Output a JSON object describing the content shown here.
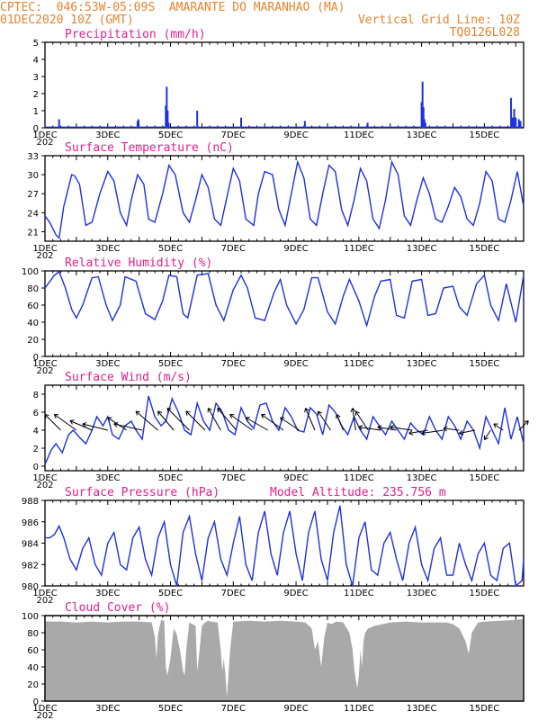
{
  "header": {
    "line1": "CPTEC:  046:53W-05:09S  AMARANTE DO MARANHAO (MA)",
    "date": "01DEC2020 10Z (GMT)",
    "grid_line": "Vertical Grid Line: 10Z",
    "code": "TQ0126L028"
  },
  "x_axis": {
    "labels": [
      "1DEC",
      "3DEC",
      "5DEC",
      "7DEC",
      "9DEC",
      "11DEC",
      "13DEC",
      "15DEC"
    ],
    "year_fragment": "202"
  },
  "colors": {
    "line": "#2030e0",
    "cloud": "#a9a9a9",
    "title": "#e0208c",
    "header": "#e8832c"
  },
  "chart_data": [
    {
      "type": "bar",
      "title": "Precipitation (mm/h)",
      "ylim": [
        0,
        5
      ],
      "yticks": [
        0,
        1,
        2,
        3,
        4,
        5
      ],
      "x_range_days": [
        0,
        15.25
      ],
      "x": [
        0.45,
        2.95,
        2.98,
        3.85,
        3.88,
        3.91,
        3.94,
        4.85,
        6.25,
        8.28,
        10.28,
        12.0,
        12.03,
        12.06,
        12.09,
        12.12,
        14.85,
        14.9,
        14.95,
        15.0,
        15.1,
        15.15
      ],
      "values": [
        0.5,
        0.4,
        0.5,
        1.3,
        2.4,
        1.0,
        0.3,
        1.0,
        0.6,
        0.4,
        0.3,
        1.5,
        2.7,
        1.2,
        0.5,
        0.3,
        1.75,
        0.6,
        1.1,
        0.6,
        0.5,
        0.4
      ]
    },
    {
      "type": "line",
      "title": "Surface Temperature (nC)",
      "ylim": [
        19.5,
        33
      ],
      "yticks": [
        21,
        24,
        27,
        30,
        33
      ],
      "x": [
        0,
        0.15,
        0.35,
        0.45,
        0.6,
        0.85,
        0.95,
        1.1,
        1.3,
        1.5,
        1.75,
        2.0,
        2.2,
        2.4,
        2.6,
        2.75,
        2.95,
        3.15,
        3.3,
        3.5,
        3.75,
        3.95,
        4.15,
        4.4,
        4.6,
        4.8,
        5.0,
        5.2,
        5.4,
        5.6,
        5.8,
        6.0,
        6.2,
        6.4,
        6.65,
        6.8,
        7.0,
        7.25,
        7.45,
        7.65,
        7.85,
        8.05,
        8.25,
        8.45,
        8.65,
        8.85,
        9.05,
        9.25,
        9.45,
        9.65,
        9.85,
        10.05,
        10.25,
        10.45,
        10.65,
        10.85,
        11.05,
        11.25,
        11.45,
        11.65,
        11.85,
        12.05,
        12.25,
        12.45,
        12.65,
        12.85,
        13.05,
        13.25,
        13.45,
        13.65,
        13.85,
        14.05,
        14.25,
        14.45,
        14.65,
        14.85,
        15.05,
        15.25
      ],
      "values": [
        23.5,
        22.5,
        20.5,
        20.0,
        25.0,
        30.0,
        29.8,
        28.5,
        22.0,
        22.5,
        27.0,
        30.5,
        29.0,
        24.0,
        22.0,
        26.0,
        30.0,
        28.5,
        23.0,
        22.5,
        27.0,
        31.5,
        30.0,
        24.0,
        22.5,
        26.0,
        30.0,
        28.0,
        23.0,
        22.0,
        26.5,
        31.0,
        29.0,
        23.0,
        22.0,
        27.0,
        30.5,
        30.0,
        24.5,
        22.0,
        27.0,
        32.0,
        29.5,
        23.0,
        22.0,
        27.0,
        31.5,
        30.5,
        24.5,
        22.0,
        26.0,
        31.0,
        29.0,
        23.0,
        21.5,
        26.0,
        32.0,
        30.0,
        23.5,
        22.0,
        26.0,
        29.5,
        27.0,
        23.0,
        22.5,
        25.0,
        28.0,
        26.5,
        23.0,
        22.0,
        25.5,
        30.5,
        29.0,
        23.0,
        22.5,
        26.0,
        30.5,
        25.0
      ]
    },
    {
      "type": "line",
      "title": "Relative Humidity (%)",
      "ylim": [
        0,
        100
      ],
      "yticks": [
        0,
        20,
        40,
        60,
        80,
        100
      ],
      "x": [
        0,
        0.3,
        0.45,
        0.65,
        0.85,
        1.0,
        1.2,
        1.5,
        1.7,
        1.95,
        2.15,
        2.4,
        2.55,
        2.9,
        3.2,
        3.5,
        3.75,
        3.95,
        4.2,
        4.4,
        4.55,
        4.85,
        5.2,
        5.45,
        5.7,
        6.0,
        6.25,
        6.45,
        6.7,
        7.0,
        7.3,
        7.5,
        7.7,
        8.0,
        8.25,
        8.5,
        8.7,
        9.0,
        9.25,
        9.5,
        9.7,
        10.0,
        10.25,
        10.5,
        10.7,
        11.0,
        11.2,
        11.45,
        11.7,
        12.0,
        12.2,
        12.45,
        12.7,
        13.0,
        13.2,
        13.45,
        13.75,
        14.0,
        14.2,
        14.45,
        14.7,
        15.0,
        15.25
      ],
      "values": [
        80,
        95,
        99,
        80,
        55,
        45,
        60,
        92,
        93,
        60,
        42,
        60,
        93,
        88,
        50,
        43,
        65,
        95,
        93,
        50,
        45,
        95,
        97,
        60,
        42,
        78,
        95,
        80,
        45,
        42,
        75,
        90,
        60,
        38,
        55,
        92,
        92,
        52,
        38,
        70,
        90,
        65,
        36,
        70,
        88,
        90,
        48,
        45,
        88,
        90,
        48,
        50,
        80,
        82,
        58,
        48,
        85,
        95,
        60,
        42,
        85,
        40,
        95
      ]
    },
    {
      "type": "line",
      "title": "Surface Wind (m/s)",
      "ylim": [
        -0.5,
        9
      ],
      "yticks": [
        0,
        2,
        4,
        6,
        8
      ],
      "x": [
        0,
        0.2,
        0.35,
        0.55,
        0.75,
        0.9,
        1.1,
        1.3,
        1.5,
        1.65,
        1.85,
        2.0,
        2.15,
        2.35,
        2.55,
        2.75,
        2.9,
        3.1,
        3.3,
        3.5,
        3.7,
        3.85,
        4.05,
        4.25,
        4.45,
        4.65,
        4.85,
        5.05,
        5.25,
        5.45,
        5.65,
        5.85,
        6.05,
        6.25,
        6.45,
        6.65,
        6.85,
        7.05,
        7.25,
        7.45,
        7.65,
        7.85,
        8.05,
        8.25,
        8.45,
        8.65,
        8.85,
        9.05,
        9.25,
        9.45,
        9.65,
        9.85,
        10.05,
        10.25,
        10.45,
        10.65,
        10.85,
        11.05,
        11.25,
        11.45,
        11.65,
        11.85,
        12.05,
        12.25,
        12.45,
        12.65,
        12.85,
        13.05,
        13.25,
        13.45,
        13.65,
        13.85,
        14.05,
        14.25,
        14.45,
        14.65,
        14.85,
        15.05,
        15.25
      ],
      "values": [
        0.2,
        1.8,
        2.5,
        1.5,
        3.5,
        4.0,
        3.2,
        2.5,
        4.0,
        5.5,
        4.5,
        5.5,
        3.5,
        3.0,
        4.5,
        5.0,
        4.0,
        3.0,
        7.8,
        5.5,
        4.5,
        5.0,
        7.5,
        6.0,
        4.0,
        3.5,
        7.0,
        5.0,
        4.0,
        7.0,
        6.0,
        4.0,
        3.5,
        6.5,
        5.0,
        4.2,
        6.8,
        7.0,
        5.0,
        4.0,
        6.5,
        5.5,
        4.0,
        3.8,
        6.5,
        5.8,
        3.5,
        6.8,
        6.0,
        4.5,
        3.5,
        5.5,
        4.0,
        3.0,
        5.5,
        4.5,
        3.5,
        5.0,
        4.0,
        3.0,
        4.8,
        4.0,
        3.5,
        5.5,
        4.0,
        3.0,
        5.5,
        4.5,
        3.0,
        5.0,
        4.0,
        2.0,
        5.5,
        4.0,
        2.5,
        6.5,
        3.0,
        5.5,
        2.5
      ],
      "arrows": [
        {
          "x": 0.5,
          "dx": -2.5,
          "dy": 2.5
        },
        {
          "x": 1.0,
          "dx": -3.5,
          "dy": 2.5
        },
        {
          "x": 1.5,
          "dx": -3.5,
          "dy": 1.5
        },
        {
          "x": 2.0,
          "dx": -4.0,
          "dy": 1.0
        },
        {
          "x": 2.6,
          "dx": -3.0,
          "dy": 2.0
        },
        {
          "x": 3.1,
          "dx": -4.5,
          "dy": 1.0
        },
        {
          "x": 3.6,
          "dx": -3.5,
          "dy": 3.0
        },
        {
          "x": 4.1,
          "dx": -2.5,
          "dy": 3.0
        },
        {
          "x": 4.6,
          "dx": -3.5,
          "dy": 3.5
        },
        {
          "x": 5.1,
          "dx": -3.0,
          "dy": 3.0
        },
        {
          "x": 5.6,
          "dx": -2.0,
          "dy": 3.5
        },
        {
          "x": 6.1,
          "dx": -3.0,
          "dy": 3.5
        },
        {
          "x": 6.6,
          "dx": -3.5,
          "dy": 2.5
        },
        {
          "x": 7.1,
          "dx": -3.5,
          "dy": 2.0
        },
        {
          "x": 7.6,
          "dx": -3.5,
          "dy": 2.5
        },
        {
          "x": 8.1,
          "dx": -3.0,
          "dy": 2.0
        },
        {
          "x": 8.6,
          "dx": -1.5,
          "dy": 3.5
        },
        {
          "x": 9.1,
          "dx": -2.0,
          "dy": 3.0
        },
        {
          "x": 9.5,
          "dx": -1.0,
          "dy": 2.5
        },
        {
          "x": 9.9,
          "dx": -0.5,
          "dy": 3.5
        },
        {
          "x": 10.3,
          "dx": -2.0,
          "dy": 3.0
        },
        {
          "x": 10.7,
          "dx": -3.5,
          "dy": 0.5
        },
        {
          "x": 11.2,
          "dx": -3.0,
          "dy": 0.5
        },
        {
          "x": 11.7,
          "dx": -3.5,
          "dy": 0.5
        },
        {
          "x": 12.2,
          "dx": -3.0,
          "dy": -0.5
        },
        {
          "x": 12.7,
          "dx": -3.5,
          "dy": -0.5
        },
        {
          "x": 13.2,
          "dx": -2.5,
          "dy": 0.3
        },
        {
          "x": 13.7,
          "dx": -2.5,
          "dy": -0.5
        },
        {
          "x": 14.2,
          "dx": -1.0,
          "dy": -1.5
        },
        {
          "x": 14.6,
          "dx": -1.5,
          "dy": 1.0
        },
        {
          "x": 15.1,
          "dx": 1.5,
          "dy": 1.5
        }
      ]
    },
    {
      "type": "line",
      "title": "Surface Pressure (hPa)",
      "annotation": "Model Altitude: 235.756 m",
      "ylim": [
        980,
        988
      ],
      "yticks": [
        980,
        982,
        984,
        986,
        988
      ],
      "x": [
        0,
        0.15,
        0.3,
        0.45,
        0.6,
        0.8,
        1.0,
        1.2,
        1.4,
        1.6,
        1.8,
        2.0,
        2.2,
        2.4,
        2.6,
        2.8,
        3.0,
        3.2,
        3.4,
        3.6,
        3.8,
        4.0,
        4.2,
        4.4,
        4.6,
        4.8,
        5.0,
        5.2,
        5.4,
        5.6,
        5.8,
        6.0,
        6.2,
        6.4,
        6.6,
        6.8,
        7.0,
        7.2,
        7.4,
        7.6,
        7.8,
        8.0,
        8.2,
        8.4,
        8.6,
        8.8,
        9.0,
        9.2,
        9.4,
        9.6,
        9.8,
        10.0,
        10.2,
        10.4,
        10.6,
        10.8,
        11.0,
        11.2,
        11.4,
        11.6,
        11.8,
        12.0,
        12.2,
        12.4,
        12.6,
        12.8,
        13.0,
        13.2,
        13.4,
        13.6,
        13.8,
        14.0,
        14.2,
        14.4,
        14.6,
        14.8,
        15.0,
        15.2,
        15.25
      ],
      "values": [
        984.5,
        984.5,
        984.8,
        985.6,
        984.5,
        982.5,
        981.5,
        983.5,
        984.5,
        982.0,
        981.0,
        984.0,
        985.0,
        982.0,
        981.5,
        984.5,
        985.5,
        982.5,
        981.0,
        984.5,
        986.0,
        982.0,
        980.0,
        985.0,
        986.5,
        983.0,
        980.5,
        984.5,
        986.0,
        982.5,
        981.0,
        984.0,
        986.5,
        982.0,
        980.5,
        985.0,
        987.0,
        983.0,
        981.0,
        985.0,
        987.0,
        983.0,
        980.5,
        985.0,
        987.0,
        982.5,
        980.5,
        985.0,
        987.5,
        982.0,
        980.0,
        984.5,
        986.0,
        981.5,
        981.0,
        984.0,
        985.0,
        982.5,
        980.5,
        984.0,
        985.5,
        982.0,
        980.5,
        983.5,
        984.5,
        981.0,
        981.0,
        984.0,
        982.0,
        980.5,
        983.0,
        984.0,
        981.0,
        980.5,
        983.5,
        984.0,
        980.0,
        980.5,
        982.5
      ]
    },
    {
      "type": "area",
      "title": "Cloud Cover (%)",
      "ylim": [
        0,
        100
      ],
      "yticks": [
        0,
        20,
        40,
        60,
        80,
        100
      ],
      "x": [
        0,
        0.5,
        1.0,
        1.5,
        2.0,
        2.5,
        3.0,
        3.4,
        3.5,
        3.55,
        3.6,
        3.7,
        3.8,
        3.85,
        3.9,
        4.0,
        4.1,
        4.2,
        4.3,
        4.4,
        4.45,
        4.5,
        4.6,
        4.7,
        4.8,
        4.85,
        4.9,
        5.0,
        5.1,
        5.2,
        5.3,
        5.5,
        5.6,
        5.65,
        5.7,
        5.75,
        5.8,
        5.9,
        6.0,
        6.5,
        7.0,
        7.5,
        8.0,
        8.3,
        8.5,
        8.6,
        8.7,
        8.8,
        8.9,
        9.0,
        9.1,
        9.3,
        9.5,
        9.7,
        9.8,
        9.85,
        9.9,
        9.95,
        10.0,
        10.05,
        10.1,
        10.15,
        10.2,
        10.3,
        10.5,
        11.0,
        11.5,
        12.0,
        12.5,
        12.8,
        13.0,
        13.2,
        13.4,
        13.5,
        13.6,
        13.8,
        14.0,
        14.5,
        15.0,
        15.25
      ],
      "values": [
        93,
        93,
        92,
        93,
        92,
        93,
        93,
        92,
        75,
        50,
        78,
        95,
        94,
        40,
        30,
        50,
        85,
        78,
        60,
        35,
        30,
        60,
        92,
        90,
        88,
        35,
        50,
        88,
        92,
        94,
        93,
        92,
        60,
        35,
        50,
        30,
        5,
        60,
        93,
        94,
        93,
        94,
        93,
        92,
        85,
        60,
        70,
        40,
        75,
        92,
        90,
        93,
        92,
        80,
        60,
        40,
        25,
        15,
        30,
        60,
        40,
        70,
        80,
        85,
        88,
        92,
        93,
        92,
        92,
        92,
        90,
        85,
        70,
        55,
        80,
        92,
        93,
        94,
        95,
        96
      ]
    }
  ]
}
